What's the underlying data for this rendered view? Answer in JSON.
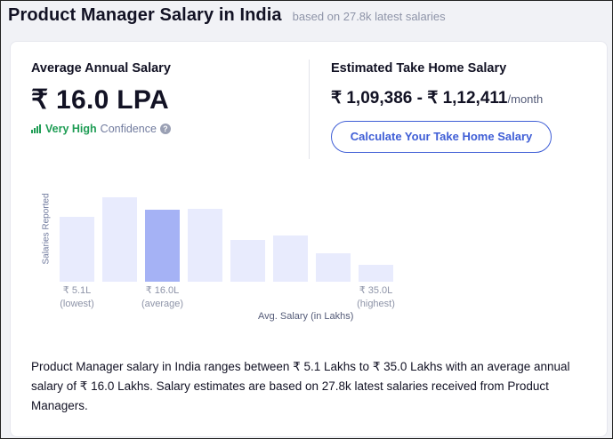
{
  "header": {
    "title": "Product Manager Salary in India",
    "subtitle": "based on 27.8k latest salaries"
  },
  "summary": {
    "avg_label": "Average Annual Salary",
    "avg_value": "₹ 16.0 LPA",
    "confidence_level": "Very High",
    "confidence_word": "Confidence",
    "confidence_help": "?",
    "takehome_label": "Estimated Take Home Salary",
    "takehome_range": "₹ 1,09,386 - ₹ 1,12,411",
    "takehome_unit": "/month",
    "calc_button": "Calculate Your Take Home Salary"
  },
  "chart_data": {
    "type": "bar",
    "ylabel": "Salaries Reported",
    "xlabel": "Avg. Salary (in Lakhs)",
    "values": [
      0.77,
      1.0,
      0.85,
      0.86,
      0.49,
      0.55,
      0.34,
      0.2
    ],
    "highlight_index": 2,
    "ticks": [
      {
        "index": 0,
        "value": "₹ 5.1L",
        "note": "(lowest)"
      },
      {
        "index": 2,
        "value": "₹ 16.0L",
        "note": "(average)"
      },
      {
        "index": 7,
        "value": "₹ 35.0L",
        "note": "(highest)"
      }
    ],
    "colors": {
      "bar": "#e8ebfd",
      "highlight": "#a5b2f5"
    }
  },
  "description": "Product Manager salary in India ranges between ₹ 5.1 Lakhs to ₹ 35.0 Lakhs with an average annual salary of ₹ 16.0 Lakhs. Salary estimates are based on 27.8k latest salaries received from Product Managers.",
  "colors": {
    "accent": "#3f5ed6",
    "positive": "#1f9d55"
  }
}
